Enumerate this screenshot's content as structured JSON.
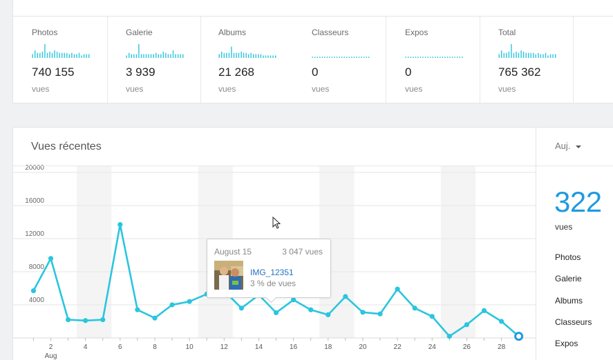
{
  "stats": [
    {
      "label": "Photos",
      "value": "740 155",
      "unit": "vues",
      "spark": [
        3,
        6,
        4,
        4,
        5,
        11,
        4,
        5,
        4,
        6,
        5,
        4,
        4,
        4,
        4,
        3,
        4,
        3,
        3,
        4,
        2,
        3,
        3,
        3
      ]
    },
    {
      "label": "Galerie",
      "value": "3 939",
      "unit": "vues",
      "spark": [
        2,
        4,
        3,
        3,
        3,
        11,
        3,
        3,
        3,
        3,
        3,
        3,
        4,
        3,
        3,
        5,
        4,
        3,
        3,
        6,
        3,
        3,
        3,
        3
      ]
    },
    {
      "label": "Albums",
      "value": "21 268",
      "unit": "vues",
      "spark": [
        3,
        5,
        4,
        4,
        4,
        9,
        4,
        4,
        4,
        5,
        4,
        4,
        3,
        4,
        3,
        3,
        3,
        3,
        2,
        2,
        2,
        2,
        2,
        2
      ]
    },
    {
      "label": "Classeurs",
      "value": "0",
      "unit": "vues",
      "spark": [
        1,
        1,
        1,
        1,
        1,
        1,
        1,
        1,
        1,
        1,
        1,
        1,
        1,
        1,
        1,
        1,
        1,
        1,
        1,
        1,
        1,
        1,
        1,
        1
      ]
    },
    {
      "label": "Expos",
      "value": "0",
      "unit": "vues",
      "spark": [
        1,
        1,
        1,
        1,
        1,
        1,
        1,
        1,
        1,
        1,
        1,
        1,
        1,
        1,
        1,
        1,
        1,
        1,
        1,
        1,
        1,
        1,
        1,
        1
      ]
    },
    {
      "label": "Total",
      "value": "765 362",
      "unit": "vues",
      "spark": [
        3,
        6,
        4,
        4,
        5,
        11,
        4,
        5,
        4,
        6,
        5,
        4,
        4,
        4,
        4,
        3,
        4,
        3,
        3,
        4,
        2,
        3,
        3,
        3
      ]
    }
  ],
  "chart": {
    "title": "Vues récentes"
  },
  "chart_data": {
    "type": "line",
    "title": "Vues récentes",
    "xlabel": "",
    "ylabel": "",
    "x": [
      1,
      2,
      3,
      4,
      5,
      6,
      7,
      8,
      9,
      10,
      11,
      12,
      13,
      14,
      15,
      16,
      17,
      18,
      19,
      20,
      21,
      22,
      23,
      24,
      25,
      26,
      27,
      28,
      29
    ],
    "values": [
      5700,
      9600,
      2200,
      2100,
      2200,
      13700,
      3400,
      2400,
      4000,
      4400,
      5300,
      5700,
      3600,
      5200,
      3047,
      4600,
      3400,
      2800,
      5000,
      3100,
      2900,
      5900,
      3600,
      2600,
      200,
      1600,
      3300,
      2000,
      200
    ],
    "x_ticks": [
      2,
      4,
      6,
      8,
      10,
      12,
      14,
      16,
      18,
      20,
      22,
      24,
      26,
      28
    ],
    "x_tick_labels": [
      "2",
      "4",
      "6",
      "8",
      "10",
      "12",
      "14",
      "16",
      "18",
      "20",
      "22",
      "24",
      "26",
      "28"
    ],
    "x_sublabel": "Aug",
    "y_ticks": [
      4000,
      8000,
      12000,
      16000,
      20000
    ],
    "ylim": [
      0,
      20000
    ],
    "grid": true,
    "line_color": "#2ac5de",
    "weekend_bands": [
      [
        3.5,
        5.5
      ],
      [
        10.5,
        12.5
      ],
      [
        17.5,
        19.5
      ],
      [
        24.5,
        26.5
      ]
    ]
  },
  "tooltip": {
    "date": "August 15",
    "views": "3 047 vues",
    "item_name": "IMG_12351",
    "item_pct": "3 % de vues"
  },
  "side": {
    "period": "Auj.",
    "big_number": "322",
    "big_unit": "vues",
    "items": [
      "Photos",
      "Galerie",
      "Albums",
      "Classeurs",
      "Expos"
    ]
  },
  "colors": {
    "accent": "#1e9be0",
    "line": "#2ac5de",
    "link": "#2370c2"
  }
}
